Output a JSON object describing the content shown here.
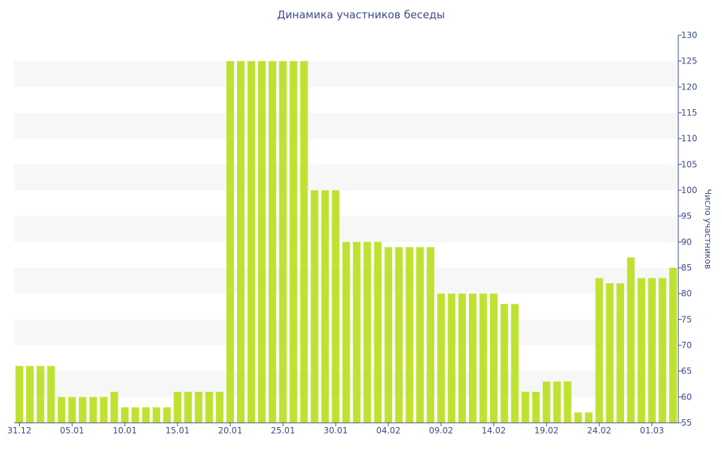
{
  "chart_data": {
    "type": "bar",
    "title": "Динамика участников беседы",
    "xlabel": "",
    "ylabel": "Число участников",
    "ylim": [
      55,
      130
    ],
    "y_axis_position": "right",
    "y_ticks": [
      55,
      60,
      65,
      70,
      75,
      80,
      85,
      90,
      95,
      100,
      105,
      110,
      115,
      120,
      125,
      130
    ],
    "x_tick_labels": [
      "31.12",
      "05.01",
      "10.01",
      "15.01",
      "20.01",
      "25.01",
      "30.01",
      "04.02",
      "09.02",
      "14.02",
      "19.02",
      "24.02",
      "01.03"
    ],
    "grid": "alternating horizontal bands",
    "bar_color": "#bfe232",
    "band_color": "#f7f7f7",
    "text_color": "#3a4a8a",
    "categories": [
      "31.12",
      "01.01",
      "02.01",
      "03.01",
      "04.01",
      "05.01",
      "06.01",
      "07.01",
      "08.01",
      "09.01",
      "10.01",
      "11.01",
      "12.01",
      "13.01",
      "14.01",
      "15.01",
      "16.01",
      "17.01",
      "18.01",
      "19.01",
      "20.01",
      "21.01",
      "22.01",
      "23.01",
      "24.01",
      "25.01",
      "26.01",
      "27.01",
      "28.01",
      "29.01",
      "30.01",
      "31.01",
      "01.02",
      "02.02",
      "03.02",
      "04.02",
      "05.02",
      "06.02",
      "07.02",
      "08.02",
      "09.02",
      "10.02",
      "11.02",
      "12.02",
      "13.02",
      "14.02",
      "15.02",
      "16.02",
      "17.02",
      "18.02",
      "19.02",
      "20.02",
      "21.02",
      "22.02",
      "23.02",
      "24.02",
      "25.02",
      "26.02",
      "27.02",
      "28.02",
      "01.03",
      "02.03",
      "03.03"
    ],
    "values": [
      66,
      66,
      66,
      66,
      60,
      60,
      60,
      60,
      60,
      61,
      58,
      58,
      58,
      58,
      58,
      61,
      61,
      61,
      61,
      61,
      125,
      125,
      125,
      125,
      125,
      125,
      125,
      125,
      100,
      100,
      100,
      90,
      90,
      90,
      90,
      89,
      89,
      89,
      89,
      89,
      80,
      80,
      80,
      80,
      80,
      80,
      78,
      78,
      61,
      61,
      63,
      63,
      63,
      57,
      57,
      83,
      82,
      82,
      87,
      83,
      83,
      83,
      85
    ]
  }
}
